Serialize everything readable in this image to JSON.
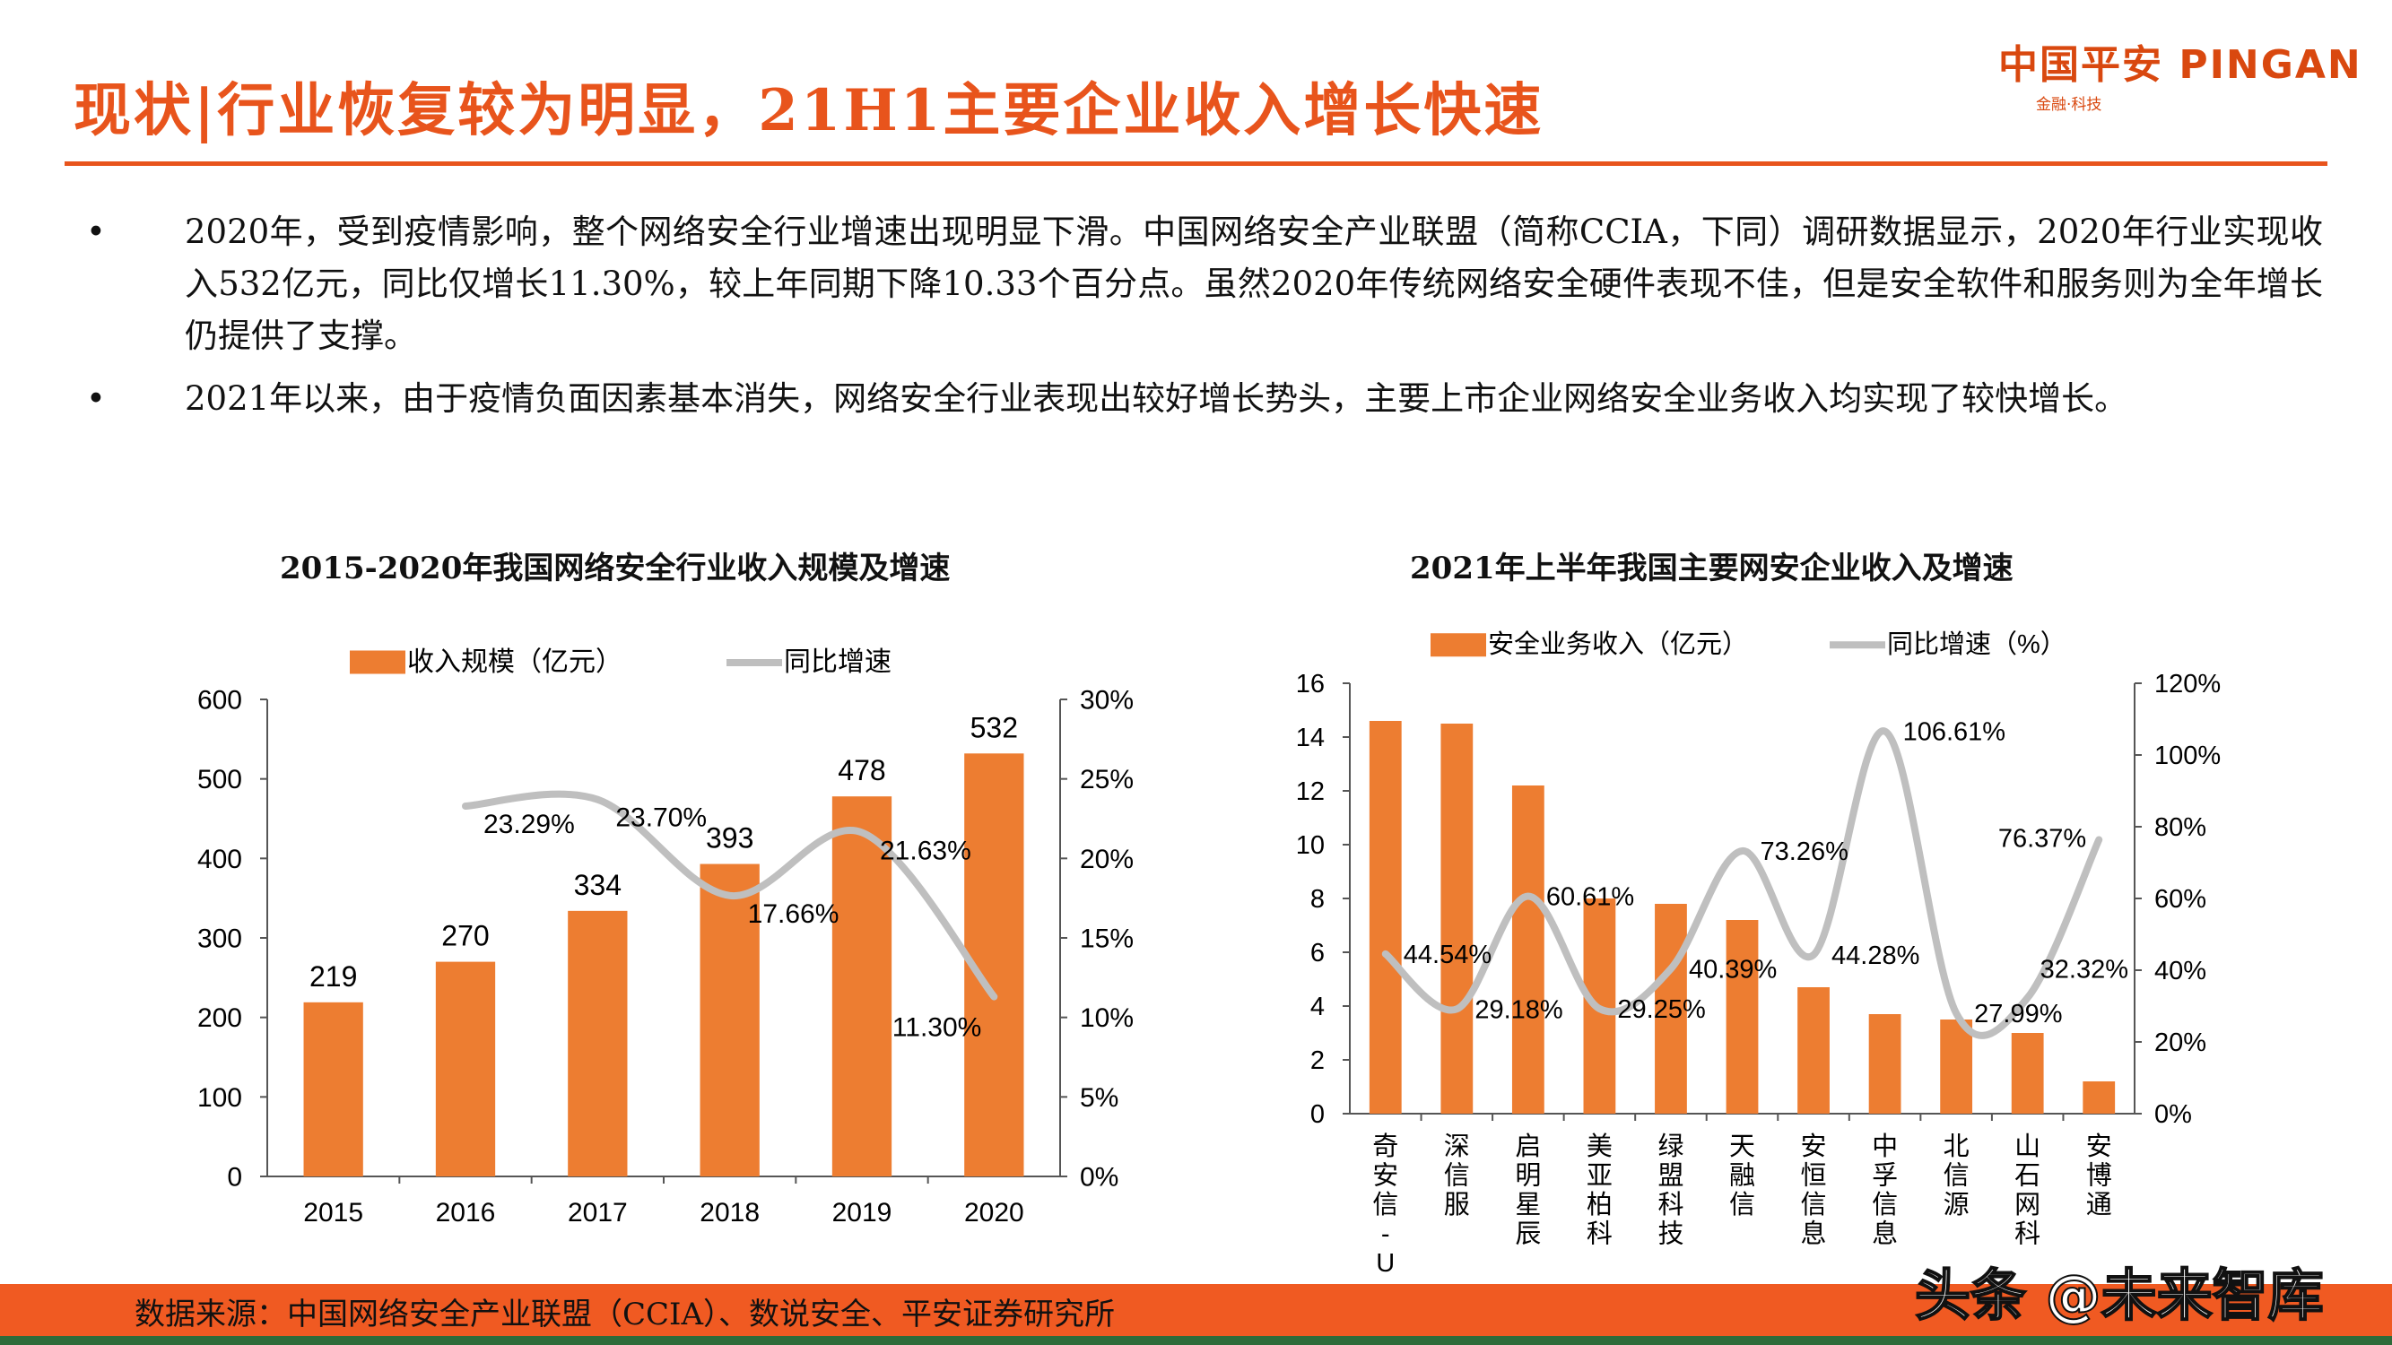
{
  "header": {
    "title": "现状|行业恢复较为明显，21H1主要企业收入增长快速",
    "logo": {
      "text": "中国平安 PINGAN",
      "subtext": "金融·科技"
    }
  },
  "bullets": [
    {
      "marker": "•",
      "text": "2020年，受到疫情影响，整个网络安全行业增速出现明显下滑。中国网络安全产业联盟（简称CCIA，下同）调研数据显示，2020年行业实现收入532亿元，同比仅增长11.30%，较上年同期下降10.33个百分点。虽然2020年传统网络安全硬件表现不佳，但是安全软件和服务则为全年增长仍提供了支撑。"
    },
    {
      "marker": "•",
      "text": "2021年以来，由于疫情负面因素基本消失，网络安全行业表现出较好增长势头，主要上市企业网络安全业务收入均实现了较快增长。"
    }
  ],
  "colors": {
    "accent": "#e8541c",
    "bar": "#ed7d31",
    "line": "#bfbfbf",
    "footer": "#f05a22",
    "footer_stripe": "#2e6b3a"
  },
  "chart_data": [
    {
      "type": "bar+line",
      "title": "2015-2020年我国网络安全行业收入规模及增速",
      "categories": [
        "2015",
        "2016",
        "2017",
        "2018",
        "2019",
        "2020"
      ],
      "series": [
        {
          "name": "收入规模（亿元）",
          "type": "bar",
          "axis": "left",
          "values": [
            219,
            270,
            334,
            393,
            478,
            532
          ],
          "labels": [
            "219",
            "270",
            "334",
            "393",
            "478",
            "532"
          ]
        },
        {
          "name": "同比增速",
          "type": "line",
          "axis": "right",
          "values": [
            null,
            23.29,
            23.7,
            17.66,
            21.63,
            11.3
          ],
          "labels": [
            "",
            "23.29%",
            "23.70%",
            "17.66%",
            "21.63%",
            "11.30%"
          ]
        }
      ],
      "ylim_left": [
        0,
        600
      ],
      "yticks_left": [
        "0",
        "100",
        "200",
        "300",
        "400",
        "500",
        "600"
      ],
      "ylim_right": [
        0,
        30
      ],
      "yticks_right": [
        "0%",
        "5%",
        "10%",
        "15%",
        "20%",
        "25%",
        "30%"
      ],
      "legend": "top",
      "grid": false
    },
    {
      "type": "bar+line",
      "title": "2021年上半年我国主要网安企业收入及增速",
      "categories": [
        "奇安信-U",
        "深信服",
        "启明星辰",
        "美亚柏科",
        "绿盟科技",
        "天融信",
        "安恒信息",
        "中孚信息",
        "北信源",
        "山石网科",
        "安博通"
      ],
      "series": [
        {
          "name": "安全业务收入（亿元）",
          "type": "bar",
          "axis": "left",
          "values": [
            14.6,
            14.5,
            12.2,
            8.0,
            7.8,
            7.2,
            4.7,
            3.7,
            3.5,
            3.0,
            1.2
          ]
        },
        {
          "name": "同比增速（%）",
          "type": "line",
          "axis": "right",
          "values": [
            44.54,
            29.18,
            60.61,
            29.25,
            40.39,
            73.26,
            44.28,
            106.61,
            27.99,
            32.32,
            76.37
          ],
          "labels": [
            "44.54%",
            "29.18%",
            "60.61%",
            "29.25%",
            "40.39%",
            "73.26%",
            "44.28%",
            "106.61%",
            "27.99%",
            "32.32%",
            "76.37%"
          ]
        }
      ],
      "ylim_left": [
        0,
        16
      ],
      "yticks_left": [
        "0",
        "2",
        "4",
        "6",
        "8",
        "10",
        "12",
        "14",
        "16"
      ],
      "ylim_right": [
        0,
        120
      ],
      "yticks_right": [
        "0%",
        "20%",
        "40%",
        "60%",
        "80%",
        "100%",
        "120%"
      ],
      "legend": "top",
      "grid": false
    }
  ],
  "footer": {
    "source": "数据来源：中国网络安全产业联盟（CCIA）、数说安全、平安证券研究所",
    "watermark": "头条 @未来智库"
  }
}
